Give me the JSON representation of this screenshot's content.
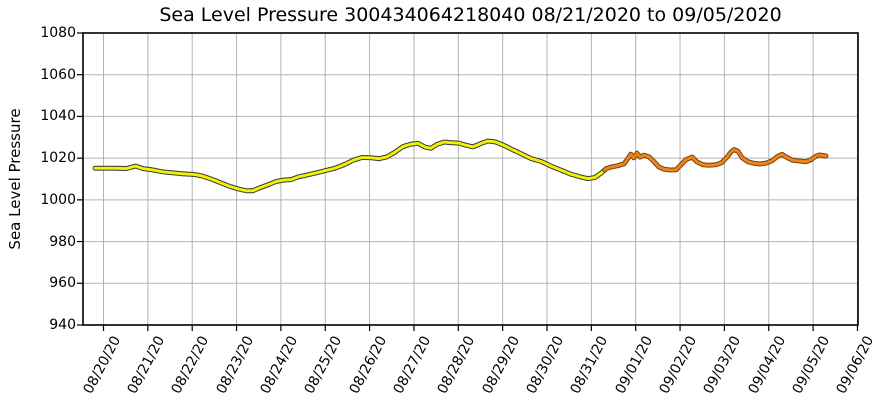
{
  "title": "Sea Level Pressure 300434064218040  08/21/2020 to 09/05/2020",
  "y_axis": {
    "label": "Sea Level Pressure",
    "ticks": [
      1080,
      1060,
      1040,
      1020,
      1000,
      980,
      960,
      940
    ]
  },
  "x_axis": {
    "tick_labels": [
      "08/20/20",
      "08/21/20",
      "08/22/20",
      "08/23/20",
      "08/24/20",
      "08/25/20",
      "08/26/20",
      "08/27/20",
      "08/28/20",
      "08/29/20",
      "08/30/20",
      "08/31/20",
      "09/01/20",
      "09/02/20",
      "09/03/20",
      "09/04/20",
      "09/05/20",
      "09/06/20"
    ]
  },
  "colors": {
    "background": "#ffffff",
    "grid": "#b4b4b4",
    "spine": "#000000",
    "text": "#000000",
    "yellow": "#f2f200",
    "yellow_edge": "#3a3a3a",
    "orange": "#ee8420",
    "orange_edge": "#7a420e"
  },
  "chart_data": {
    "type": "line",
    "title": "Sea Level Pressure 300434064218040  08/21/2020 to 09/05/2020",
    "xlabel": "",
    "ylabel": "Sea Level Pressure",
    "ylim": [
      940,
      1080
    ],
    "xlim_days": [
      -0.46,
      17.01
    ],
    "x_unit": "days since 08/20/2020 00:00 (x tick labels show dates)",
    "grid": true,
    "legend": "none",
    "marker_style": "dense dot markers with dark edges forming a band",
    "series": [
      {
        "id": "early",
        "label": "early segment (yellow markers, ~08/19 to ~08/31)",
        "color": "#f2f200",
        "edge_color": "#3a3a3a",
        "points": [
          [
            -0.19,
            1015.2
          ],
          [
            0.19,
            1015.2
          ],
          [
            0.51,
            1015.0
          ],
          [
            0.73,
            1016.2
          ],
          [
            0.89,
            1015.0
          ],
          [
            1.09,
            1014.4
          ],
          [
            1.34,
            1013.4
          ],
          [
            1.54,
            1013.0
          ],
          [
            1.77,
            1012.5
          ],
          [
            2.02,
            1012.2
          ],
          [
            2.2,
            1011.6
          ],
          [
            2.4,
            1010.2
          ],
          [
            2.63,
            1008.3
          ],
          [
            2.85,
            1006.4
          ],
          [
            3.08,
            1005.0
          ],
          [
            3.24,
            1004.3
          ],
          [
            3.37,
            1004.4
          ],
          [
            3.53,
            1005.8
          ],
          [
            3.71,
            1007.2
          ],
          [
            3.89,
            1008.8
          ],
          [
            4.07,
            1009.5
          ],
          [
            4.23,
            1009.7
          ],
          [
            4.39,
            1011.0
          ],
          [
            4.59,
            1011.9
          ],
          [
            4.79,
            1012.9
          ],
          [
            5.02,
            1014.1
          ],
          [
            5.24,
            1015.3
          ],
          [
            5.42,
            1016.8
          ],
          [
            5.63,
            1019.0
          ],
          [
            5.83,
            1020.3
          ],
          [
            6.03,
            1020.2
          ],
          [
            6.21,
            1019.7
          ],
          [
            6.39,
            1020.6
          ],
          [
            6.57,
            1022.8
          ],
          [
            6.75,
            1025.5
          ],
          [
            6.93,
            1026.7
          ],
          [
            7.09,
            1027.1
          ],
          [
            7.25,
            1025.3
          ],
          [
            7.38,
            1024.7
          ],
          [
            7.52,
            1026.6
          ],
          [
            7.68,
            1027.7
          ],
          [
            7.83,
            1027.4
          ],
          [
            8.01,
            1027.2
          ],
          [
            8.17,
            1026.2
          ],
          [
            8.33,
            1025.4
          ],
          [
            8.51,
            1027.0
          ],
          [
            8.67,
            1028.2
          ],
          [
            8.83,
            1027.8
          ],
          [
            9.01,
            1026.3
          ],
          [
            9.21,
            1024.2
          ],
          [
            9.41,
            1022.2
          ],
          [
            9.64,
            1019.8
          ],
          [
            9.87,
            1018.4
          ],
          [
            10.09,
            1016.2
          ],
          [
            10.32,
            1014.2
          ],
          [
            10.54,
            1012.3
          ],
          [
            10.77,
            1010.9
          ],
          [
            10.92,
            1010.2
          ],
          [
            11.08,
            1010.7
          ],
          [
            11.22,
            1012.8
          ],
          [
            11.3,
            1014.3
          ]
        ]
      },
      {
        "id": "recent",
        "label": "recent segment (orange markers, ~08/31 to 09/05)",
        "color": "#ee8420",
        "edge_color": "#7a420e",
        "points": [
          [
            11.3,
            1014.3
          ],
          [
            11.33,
            1015.0
          ],
          [
            11.46,
            1015.8
          ],
          [
            11.6,
            1016.4
          ],
          [
            11.74,
            1017.3
          ],
          [
            11.83,
            1020.0
          ],
          [
            11.89,
            1021.9
          ],
          [
            11.96,
            1020.1
          ],
          [
            12.03,
            1022.4
          ],
          [
            12.1,
            1020.5
          ],
          [
            12.19,
            1021.4
          ],
          [
            12.3,
            1020.6
          ],
          [
            12.41,
            1018.4
          ],
          [
            12.52,
            1015.8
          ],
          [
            12.64,
            1014.7
          ],
          [
            12.77,
            1014.3
          ],
          [
            12.91,
            1014.4
          ],
          [
            13.02,
            1016.8
          ],
          [
            13.13,
            1019.2
          ],
          [
            13.27,
            1020.5
          ],
          [
            13.38,
            1018.2
          ],
          [
            13.52,
            1016.8
          ],
          [
            13.67,
            1016.6
          ],
          [
            13.83,
            1016.9
          ],
          [
            13.95,
            1018.0
          ],
          [
            14.06,
            1020.5
          ],
          [
            14.15,
            1023.0
          ],
          [
            14.22,
            1024.1
          ],
          [
            14.31,
            1023.2
          ],
          [
            14.4,
            1020.2
          ],
          [
            14.53,
            1018.3
          ],
          [
            14.67,
            1017.5
          ],
          [
            14.8,
            1017.2
          ],
          [
            14.94,
            1017.6
          ],
          [
            15.07,
            1018.7
          ],
          [
            15.21,
            1021.0
          ],
          [
            15.3,
            1021.8
          ],
          [
            15.41,
            1020.3
          ],
          [
            15.54,
            1019.0
          ],
          [
            15.7,
            1018.6
          ],
          [
            15.84,
            1018.3
          ],
          [
            15.95,
            1019.2
          ],
          [
            16.06,
            1020.9
          ],
          [
            16.15,
            1021.5
          ],
          [
            16.29,
            1021.0
          ]
        ]
      }
    ]
  }
}
